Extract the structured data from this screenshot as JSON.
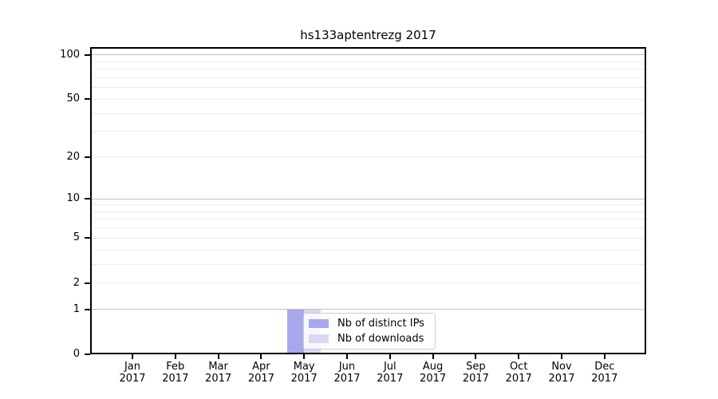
{
  "chart_data": {
    "type": "bar",
    "title": "hs133aptentrezg 2017",
    "categories": [
      "Jan",
      "Feb",
      "Mar",
      "Apr",
      "May",
      "Jun",
      "Jul",
      "Aug",
      "Sep",
      "Oct",
      "Nov",
      "Dec"
    ],
    "x_tick_year_label": "2017",
    "series": [
      {
        "name": "Nb of distinct IPs",
        "color": "#a8a8ec",
        "values": [
          0,
          0,
          0,
          0,
          1,
          0,
          0,
          0,
          0,
          0,
          0,
          0
        ]
      },
      {
        "name": "Nb of downloads",
        "color": "#d8d8f4",
        "values": [
          0,
          0,
          0,
          0,
          1,
          0,
          0,
          0,
          0,
          0,
          0,
          0
        ]
      }
    ],
    "y_axis": {
      "scale": "log1p",
      "ymax": 113,
      "labeled_ticks": [
        0,
        1,
        2,
        5,
        10,
        20,
        50,
        100
      ],
      "major_gridlines": [
        1,
        10,
        100
      ],
      "minor_gridlines": [
        2,
        3,
        4,
        5,
        6,
        7,
        8,
        9,
        20,
        30,
        40,
        50,
        60,
        70,
        80,
        90
      ]
    },
    "xlabel": "",
    "ylabel": "",
    "grid": "horizontal",
    "legend_position": "lower center (inside plot)"
  },
  "colors": {
    "background": "#ffffff",
    "axis_frame": "#000000",
    "grid_major": "#bfbfbf",
    "grid_minor": "#ebebeb",
    "legend_border": "#cccccc",
    "bar_distinct_ips": "#a8a8ec",
    "bar_downloads": "#d8d8f4"
  }
}
